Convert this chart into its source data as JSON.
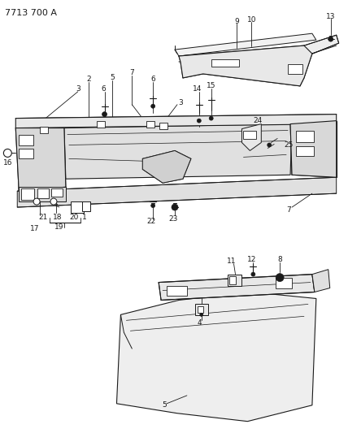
{
  "title": "7713 700 A",
  "bg_color": "#ffffff",
  "line_color": "#1a1a1a",
  "fig_width": 4.28,
  "fig_height": 5.33,
  "dpi": 100,
  "lfs": 6.5
}
